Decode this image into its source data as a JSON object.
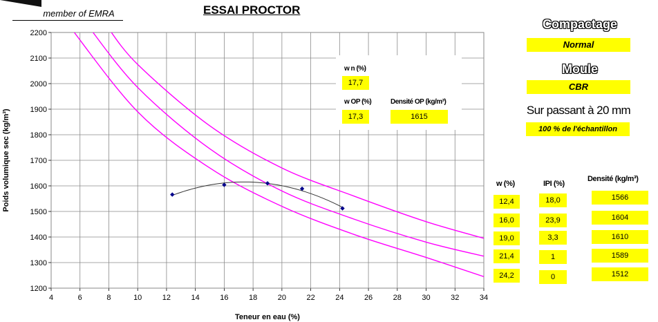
{
  "header": {
    "member_label": "member of EMRA",
    "title": "ESSAI PROCTOR"
  },
  "summary": {
    "wn_label": "w n (%)",
    "wn_value": "17,7",
    "wop_label": "w OP (%)",
    "wop_value": "17,3",
    "dop_label": "Densité OP (kg/m³)",
    "dop_value": "1615"
  },
  "side": {
    "compactage_label": "Compactage",
    "compactage_value": "Normal",
    "moule_label": "Moule",
    "moule_value": "CBR",
    "sieve_label": "Sur passant à 20 mm",
    "sample_value": "100 % de l'échantillon"
  },
  "table": {
    "headers": [
      "w (%)",
      "IPI (%)",
      "Densité (kg/m³)"
    ],
    "rows": [
      {
        "w": "12,4",
        "ipi": "18,0",
        "d": "1566"
      },
      {
        "w": "16,0",
        "ipi": "23,9",
        "d": "1604"
      },
      {
        "w": "19,0",
        "ipi": "3,3",
        "d": "1610"
      },
      {
        "w": "21,4",
        "ipi": "1",
        "d": "1589"
      },
      {
        "w": "24,2",
        "ipi": "0",
        "d": "1512"
      }
    ]
  },
  "chart_data": {
    "type": "scatter",
    "xlabel": "Teneur en eau (%)",
    "ylabel": "Poids volumique sec (kg/m³)",
    "xlim": [
      4,
      34
    ],
    "ylim": [
      1200,
      2200
    ],
    "x_ticks": [
      4,
      6,
      8,
      10,
      12,
      14,
      16,
      18,
      20,
      22,
      24,
      26,
      28,
      30,
      32,
      34
    ],
    "y_ticks": [
      1200,
      1300,
      1400,
      1500,
      1600,
      1700,
      1800,
      1900,
      2000,
      2100,
      2200
    ],
    "grid": true,
    "series": [
      {
        "points": [
          [
            12.4,
            1566
          ],
          [
            16.0,
            1604
          ],
          [
            19.0,
            1610
          ],
          [
            21.4,
            1589
          ],
          [
            24.2,
            1512
          ]
        ],
        "color": "#00008b"
      }
    ],
    "fit_curve": {
      "color": "#333333",
      "x_from": 12.4,
      "x_to": 24.2
    },
    "saturation_curves": {
      "color": "#ff00ff",
      "curves": [
        [
          [
            5.2,
            2230
          ],
          [
            10,
            1890
          ],
          [
            15,
            1670
          ],
          [
            20,
            1520
          ],
          [
            25,
            1410
          ],
          [
            30,
            1320
          ],
          [
            34,
            1245
          ]
        ],
        [
          [
            6.5,
            2230
          ],
          [
            10,
            1985
          ],
          [
            15,
            1745
          ],
          [
            20,
            1580
          ],
          [
            25,
            1470
          ],
          [
            30,
            1380
          ],
          [
            34,
            1325
          ]
        ],
        [
          [
            7.8,
            2230
          ],
          [
            10,
            2075
          ],
          [
            15,
            1835
          ],
          [
            20,
            1670
          ],
          [
            25,
            1560
          ],
          [
            30,
            1460
          ],
          [
            34,
            1395
          ]
        ]
      ]
    }
  }
}
